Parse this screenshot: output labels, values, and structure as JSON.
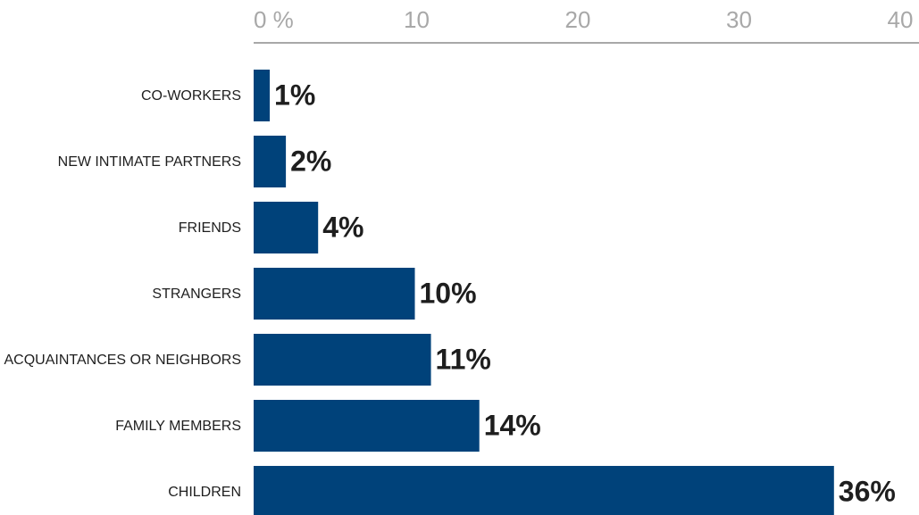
{
  "chart_data": {
    "type": "bar",
    "orientation": "horizontal",
    "categories": [
      "CO-WORKERS",
      "NEW INTIMATE PARTNERS",
      "FRIENDS",
      "STRANGERS",
      "ACQUAINTANCES OR NEIGHBORS",
      "FAMILY MEMBERS",
      "CHILDREN"
    ],
    "values": [
      1,
      2,
      4,
      10,
      11,
      14,
      36
    ],
    "value_labels": [
      "1%",
      "2%",
      "4%",
      "10%",
      "11%",
      "14%",
      "36%"
    ],
    "color": "#00427a",
    "xlim": [
      0,
      40
    ],
    "xticks": [
      {
        "value": 0,
        "label": "0 %"
      },
      10,
      20,
      30,
      40
    ],
    "grid": false
  }
}
